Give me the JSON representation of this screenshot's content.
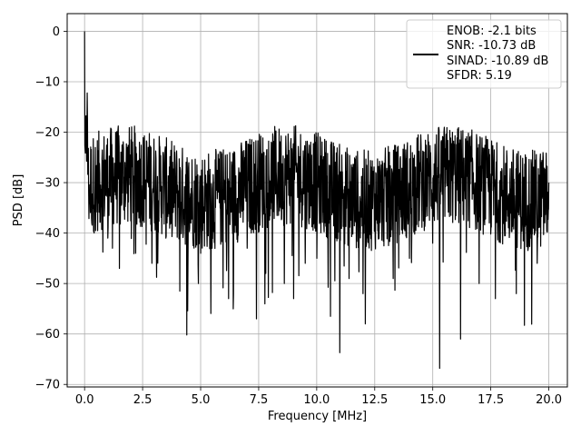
{
  "chart_data": {
    "type": "line",
    "title": "",
    "xlabel": "Frequency [MHz]",
    "ylabel": "PSD [dB]",
    "xlim": [
      -0.75,
      20.8
    ],
    "ylim": [
      -70.5,
      3.5
    ],
    "xticks": [
      0.0,
      2.5,
      5.0,
      7.5,
      10.0,
      12.5,
      15.0,
      17.5,
      20.0
    ],
    "xtick_labels": [
      "0.0",
      "2.5",
      "5.0",
      "7.5",
      "10.0",
      "12.5",
      "15.0",
      "17.5",
      "20.0"
    ],
    "yticks": [
      0,
      -10,
      -20,
      -30,
      -40,
      -50,
      -60,
      -70
    ],
    "ytick_labels": [
      "0",
      "−10",
      "−20",
      "−30",
      "−40",
      "−50",
      "−60",
      "−70"
    ],
    "grid": true,
    "legend_position": "top-right",
    "legend_entries": [
      "ENOB: -2.1 bits",
      "SNR: -10.73 dB",
      "SINAD: -10.89 dB",
      "SFDR: 5.19"
    ],
    "series": [
      {
        "color": "#000000",
        "description": "dense noise floor, PSD fluctuating roughly between -20 and -42 dB across 0–20 MHz, peak 0 dB at DC",
        "x": [
          0.0,
          0.05,
          0.1,
          0.15,
          0.2,
          0.3,
          0.5,
          1.0,
          1.2,
          1.5,
          2.2,
          2.9,
          3.5,
          4.1,
          4.4,
          5.0,
          6.2,
          7.0,
          7.4,
          7.8,
          8.6,
          9.0,
          9.5,
          10.0,
          10.6,
          11.0,
          11.4,
          12.0,
          12.1,
          13.3,
          14.0,
          15.0,
          15.3,
          16.2,
          17.0,
          17.7,
          18.6,
          19.5,
          20.0
        ],
        "y": [
          0.0,
          -17.0,
          -20.0,
          -24.0,
          -33.0,
          -37.0,
          -28.0,
          -41.0,
          -43.0,
          -47.0,
          -44.0,
          -46.0,
          -41.0,
          -51.5,
          -60.2,
          -44.0,
          -53.0,
          -43.0,
          -57.0,
          -48.0,
          -50.0,
          -53.0,
          -46.0,
          -45.0,
          -56.5,
          -63.7,
          -49.0,
          -52.0,
          -58.0,
          -49.0,
          -45.0,
          -42.0,
          -66.8,
          -61.0,
          -50.0,
          -53.0,
          -52.0,
          -46.0,
          -30.0
        ]
      }
    ]
  }
}
